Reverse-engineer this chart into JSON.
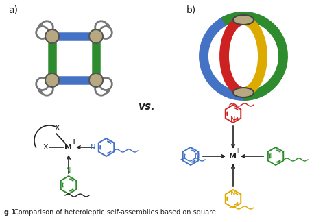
{
  "bg_color": "#ffffff",
  "label_a": "a)",
  "label_b": "b)",
  "vs_text": "vs.",
  "cage_a": {
    "corner_color": "#b8a882",
    "corner_edge": "#555555",
    "hbar_color": "#4472c4",
    "vbar_color": "#2e8b2e",
    "ring_color": "#777777",
    "ring_fill": "#ffffff"
  },
  "cage_b": {
    "corner_color": "#b8a882",
    "corner_edge": "#444444",
    "arc_blue": "#4472c4",
    "arc_green": "#2e8b2e",
    "arc_red": "#cc2222",
    "arc_yellow": "#ddaa00"
  },
  "mol_left": {
    "py_color_blue": "#4472c4",
    "py_color_green": "#2e8b2e",
    "line_color": "#222222",
    "arrow_color": "#222222"
  },
  "mol_right": {
    "py_color_blue": "#4472c4",
    "py_color_green": "#2e8b2e",
    "py_color_red": "#cc2222",
    "py_color_yellow": "#ddaa00",
    "line_color": "#222222",
    "arrow_color": "#222222"
  },
  "caption": "Comparison of heteroleptic self-assemblies based on square"
}
